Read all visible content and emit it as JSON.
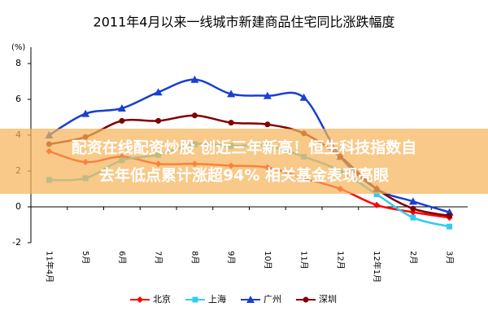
{
  "chart_data": {
    "type": "line",
    "title": "2011年4月以来一线城市新建商品住宅同比涨跌幅度",
    "y_unit": "(%)",
    "categories": [
      "11年4月",
      "5月",
      "6月",
      "7月",
      "8月",
      "9月",
      "10月",
      "11月",
      "12月",
      "12年1月",
      "2月",
      "3月"
    ],
    "series": [
      {
        "name": "北京",
        "color": "#ff0000",
        "marker": "diamond",
        "values": [
          3.1,
          2.5,
          2.8,
          2.4,
          2.4,
          2.3,
          2.2,
          1.6,
          1.0,
          0.1,
          -0.3,
          -0.6
        ]
      },
      {
        "name": "上海",
        "color": "#33ccee",
        "marker": "square",
        "values": [
          1.5,
          1.6,
          2.6,
          2.9,
          3.5,
          3.4,
          3.4,
          2.8,
          2.0,
          0.7,
          -0.6,
          -1.1
        ]
      },
      {
        "name": "广州",
        "color": "#1a3fd0",
        "marker": "triangle",
        "values": [
          4.0,
          5.2,
          5.5,
          6.4,
          7.1,
          6.3,
          6.2,
          6.1,
          2.8,
          1.0,
          0.3,
          -0.3
        ]
      },
      {
        "name": "深圳",
        "color": "#800000",
        "marker": "circle",
        "values": [
          3.5,
          3.9,
          4.8,
          4.8,
          5.1,
          4.7,
          4.6,
          4.1,
          2.8,
          1.0,
          -0.1,
          -0.5
        ]
      }
    ],
    "ylim": [
      -2,
      8
    ],
    "yticks": [
      -2,
      0,
      2,
      4,
      6,
      8
    ]
  },
  "banner": {
    "lines": [
      "配资在线配资炒股 创近三年新高！恒生科技指数自",
      "去年低点累计涨超94% 相关基金表现亮眼"
    ]
  }
}
